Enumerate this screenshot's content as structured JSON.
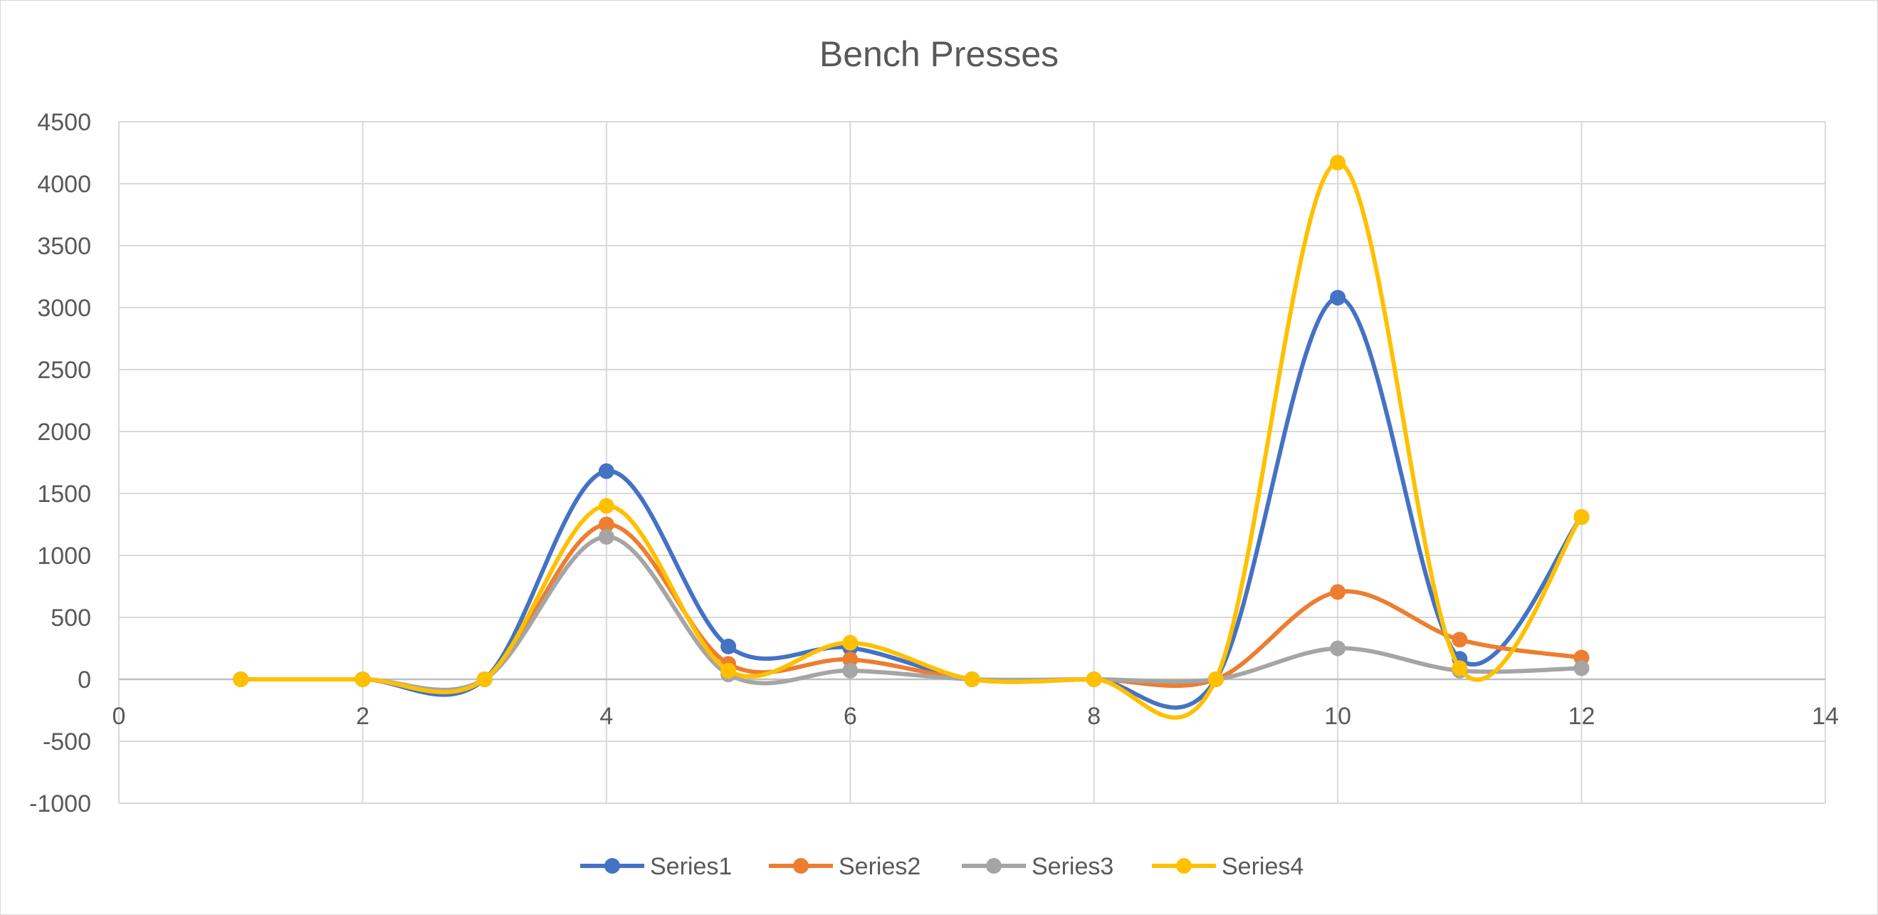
{
  "chart_data": {
    "type": "scatter",
    "title": "Bench Presses",
    "xlabel": "",
    "ylabel": "",
    "xlim": [
      0,
      14
    ],
    "ylim": [
      -1000,
      4500
    ],
    "x_ticks": [
      0,
      2,
      4,
      6,
      8,
      10,
      12,
      14
    ],
    "y_ticks": [
      -1000,
      -500,
      0,
      500,
      1000,
      1500,
      2000,
      2500,
      3000,
      3500,
      4000,
      4500
    ],
    "grid": true,
    "smooth_lines": true,
    "legend_position": "bottom",
    "x": [
      1,
      2,
      3,
      4,
      5,
      6,
      7,
      8,
      9,
      10,
      11,
      12
    ],
    "series": [
      {
        "name": "Series1",
        "color": "#4472C4",
        "values": [
          0,
          0,
          0,
          1680,
          265,
          255,
          0,
          0,
          0,
          3080,
          165,
          1310
        ]
      },
      {
        "name": "Series2",
        "color": "#ED7D31",
        "values": [
          0,
          0,
          0,
          1250,
          125,
          160,
          0,
          0,
          0,
          705,
          320,
          175
        ]
      },
      {
        "name": "Series3",
        "color": "#A5A5A5",
        "values": [
          0,
          0,
          0,
          1150,
          40,
          70,
          0,
          0,
          0,
          250,
          70,
          90
        ]
      },
      {
        "name": "Series4",
        "color": "#FFC000",
        "values": [
          0,
          0,
          0,
          1400,
          70,
          295,
          0,
          0,
          0,
          4170,
          90,
          1310
        ]
      }
    ]
  }
}
